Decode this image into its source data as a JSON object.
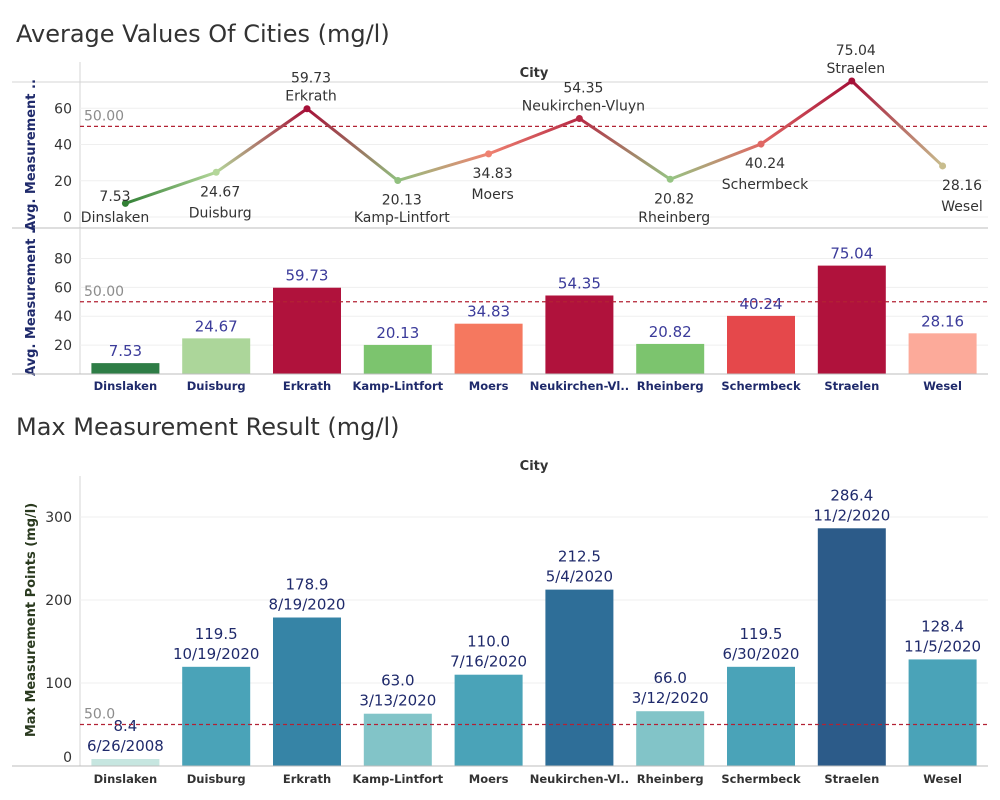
{
  "section1": {
    "title": "Average Values Of Cities (mg/l)"
  },
  "section2": {
    "title": "Max Measurement Result (mg/l)"
  },
  "chart_data": [
    {
      "type": "line",
      "header": "City",
      "ylabel": "Avg. Measurement ..",
      "categories": [
        "Dinslaken",
        "Duisburg",
        "Erkrath",
        "Kamp-Lintfort",
        "Moers",
        "Neukirchen-Vluyn",
        "Rheinberg",
        "Schermbeck",
        "Straelen",
        "Wesel"
      ],
      "values": [
        7.53,
        24.67,
        59.73,
        20.13,
        34.83,
        54.35,
        20.82,
        40.24,
        75.04,
        28.16
      ],
      "value_labels": [
        "7.53",
        "24.67",
        "59.73",
        "20.13",
        "34.83",
        "54.35",
        "20.82",
        "40.24",
        "75.04",
        "28.16"
      ],
      "yticks": [
        0,
        20,
        40,
        60
      ],
      "ylim": [
        0,
        80
      ],
      "reference_line": {
        "value": 50,
        "label": "50.00",
        "color": "#b22234"
      },
      "color_scale": {
        "low": "#2e7d32",
        "mid": "#f08070",
        "high": "#a50f37"
      },
      "grid": true
    },
    {
      "type": "bar",
      "ylabel": "Avg. Measurement ..",
      "categories": [
        "Dinslaken",
        "Duisburg",
        "Erkrath",
        "Kamp-Lintfort",
        "Moers",
        "Neukirchen-Vl..",
        "Rheinberg",
        "Schermbeck",
        "Straelen",
        "Wesel"
      ],
      "values": [
        7.53,
        24.67,
        59.73,
        20.13,
        34.83,
        54.35,
        20.82,
        40.24,
        75.04,
        28.16
      ],
      "value_labels": [
        "7.53",
        "24.67",
        "59.73",
        "20.13",
        "34.83",
        "54.35",
        "20.82",
        "40.24",
        "75.04",
        "28.16"
      ],
      "colors": [
        "#2e7d46",
        "#acd69a",
        "#b0123c",
        "#7cc46e",
        "#f5785f",
        "#b0123c",
        "#7cc46e",
        "#e5484b",
        "#b0123c",
        "#fcaa9a"
      ],
      "yticks": [
        20,
        40,
        60,
        80
      ],
      "ylim": [
        0,
        90
      ],
      "reference_line": {
        "value": 50,
        "label": "50.00",
        "color": "#b22234"
      },
      "grid": true
    },
    {
      "type": "bar",
      "header": "City",
      "ylabel": "Max Measurement Points (mg/l)",
      "categories": [
        "Dinslaken",
        "Duisburg",
        "Erkrath",
        "Kamp-Lintfort",
        "Moers",
        "Neukirchen-Vl..",
        "Rheinberg",
        "Schermbeck",
        "Straelen",
        "Wesel"
      ],
      "values": [
        8.4,
        119.5,
        178.9,
        63.0,
        110.0,
        212.5,
        66.0,
        119.5,
        286.4,
        128.4
      ],
      "value_labels": [
        "8.4",
        "119.5",
        "178.9",
        "63.0",
        "110.0",
        "212.5",
        "66.0",
        "119.5",
        "286.4",
        "128.4"
      ],
      "date_labels": [
        "6/26/2008",
        "10/19/2020",
        "8/19/2020",
        "3/13/2020",
        "7/16/2020",
        "5/4/2020",
        "3/12/2020",
        "6/30/2020",
        "11/2/2020",
        "11/5/2020"
      ],
      "colors": [
        "#c6e6e0",
        "#4aa3b8",
        "#3684a6",
        "#82c4c8",
        "#4aa3b8",
        "#2e6e98",
        "#82c4c8",
        "#4aa3b8",
        "#2c5b89",
        "#4aa3b8"
      ],
      "yticks": [
        0,
        100,
        200,
        300
      ],
      "ylim": [
        0,
        350
      ],
      "reference_line": {
        "value": 50,
        "label": "50.0",
        "color": "#b22234"
      },
      "grid": true
    }
  ]
}
